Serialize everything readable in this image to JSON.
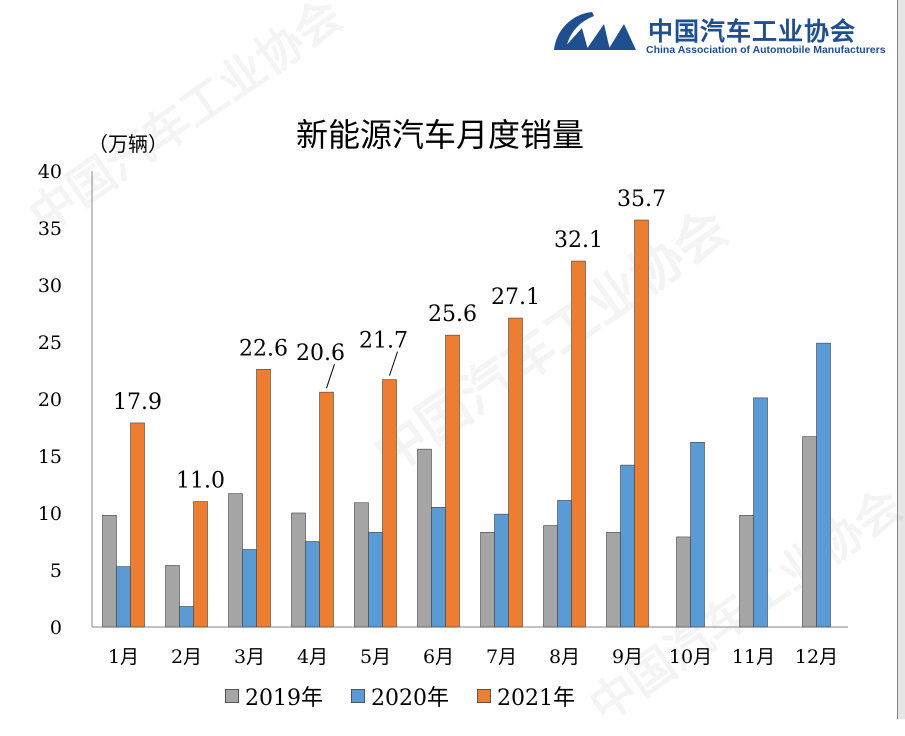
{
  "logo": {
    "name_cn": "中国汽车工业协会",
    "name_en": "China Association of Automobile Manufacturers",
    "mark": "CAAM",
    "color": "#1f4f8f"
  },
  "chart_data": {
    "type": "bar",
    "title": "新能源汽车月度销量",
    "ylabel": "（万辆）",
    "ylim": [
      0,
      40
    ],
    "yticks": [
      0,
      5,
      10,
      15,
      20,
      25,
      30,
      35,
      40
    ],
    "grid": false,
    "legend_position": "bottom",
    "categories": [
      "1月",
      "2月",
      "3月",
      "4月",
      "5月",
      "6月",
      "7月",
      "8月",
      "9月",
      "10月",
      "11月",
      "12月"
    ],
    "series": [
      {
        "name": "2019年",
        "color": "#a5a5a5",
        "values": [
          9.8,
          5.4,
          11.7,
          10.0,
          10.9,
          15.6,
          8.3,
          8.9,
          8.3,
          7.9,
          9.8,
          16.7
        ]
      },
      {
        "name": "2020年",
        "color": "#5b9bd5",
        "values": [
          5.3,
          1.8,
          6.8,
          7.5,
          8.3,
          10.5,
          9.9,
          11.1,
          14.2,
          16.2,
          20.1,
          24.9
        ]
      },
      {
        "name": "2021年",
        "color": "#ed7d31",
        "values": [
          17.9,
          11.0,
          22.6,
          20.6,
          21.7,
          25.6,
          27.1,
          32.1,
          35.7,
          null,
          null,
          null
        ],
        "data_labels": [
          "17.9",
          "11.0",
          "22.6",
          "20.6",
          "21.7",
          "25.6",
          "27.1",
          "32.1",
          "35.7"
        ]
      }
    ]
  }
}
